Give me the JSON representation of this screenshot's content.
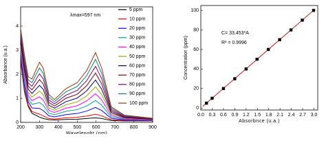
{
  "chart_data": [
    {
      "type": "line",
      "xlabel": "Wavelenght (nm)",
      "ylabel": "Absorbance (u.a.)",
      "annotation": "λmax=597 nm",
      "x": [
        200,
        220,
        240,
        260,
        300,
        320,
        350,
        380,
        440,
        500,
        550,
        597,
        630,
        680,
        750,
        900
      ],
      "xlim": [
        200,
        900
      ],
      "xticks": [
        200,
        300,
        400,
        500,
        600,
        700,
        800,
        900
      ],
      "ylim": [
        0,
        4.8
      ],
      "yticks": [
        0,
        1,
        2,
        3,
        4
      ],
      "legend": "upper right",
      "series": [
        {
          "name": "5 ppm",
          "color": "#000000",
          "values": [
            2.57,
            1.28,
            0.67,
            0.38,
            0.22,
            0.16,
            0.11,
            0.1,
            0.12,
            0.13,
            0.16,
            0.19,
            0.16,
            0.08,
            0.06,
            0.06
          ]
        },
        {
          "name": "10 ppm",
          "color": "#ff0000",
          "values": [
            2.64,
            1.36,
            0.73,
            0.45,
            0.34,
            0.27,
            0.16,
            0.14,
            0.19,
            0.21,
            0.26,
            0.34,
            0.27,
            0.11,
            0.08,
            0.06
          ]
        },
        {
          "name": "20 ppm",
          "color": "#0000ff",
          "values": [
            2.78,
            1.52,
            0.86,
            0.6,
            0.58,
            0.49,
            0.27,
            0.23,
            0.32,
            0.37,
            0.47,
            0.62,
            0.49,
            0.17,
            0.1,
            0.07
          ]
        },
        {
          "name": "30 ppm",
          "color": "#00a0a0",
          "values": [
            2.92,
            1.68,
            0.99,
            0.75,
            0.82,
            0.71,
            0.38,
            0.32,
            0.46,
            0.53,
            0.68,
            0.91,
            0.71,
            0.23,
            0.13,
            0.09
          ]
        },
        {
          "name": "40 ppm",
          "color": "#ff00ff",
          "values": [
            3.06,
            1.84,
            1.12,
            0.9,
            1.06,
            0.93,
            0.49,
            0.41,
            0.59,
            0.69,
            0.89,
            1.19,
            0.93,
            0.29,
            0.15,
            0.1
          ]
        },
        {
          "name": "50 ppm",
          "color": "#a0a000",
          "values": [
            3.2,
            2.0,
            1.25,
            1.05,
            1.3,
            1.15,
            0.6,
            0.5,
            0.73,
            0.85,
            1.1,
            1.48,
            1.15,
            0.35,
            0.18,
            0.11
          ]
        },
        {
          "name": "60 ppm",
          "color": "#000080",
          "values": [
            3.34,
            2.16,
            1.38,
            1.2,
            1.54,
            1.37,
            0.71,
            0.59,
            0.86,
            1.01,
            1.31,
            1.76,
            1.37,
            0.41,
            0.2,
            0.12
          ]
        },
        {
          "name": "70 ppm",
          "color": "#800000",
          "values": [
            3.48,
            2.32,
            1.51,
            1.35,
            1.78,
            1.59,
            0.82,
            0.68,
            1.0,
            1.17,
            1.52,
            2.05,
            1.59,
            0.47,
            0.23,
            0.13
          ]
        },
        {
          "name": "80 ppm",
          "color": "#800080",
          "values": [
            3.62,
            2.48,
            1.64,
            1.5,
            2.02,
            1.81,
            0.93,
            0.77,
            1.13,
            1.33,
            1.73,
            2.33,
            1.81,
            0.53,
            0.25,
            0.15
          ]
        },
        {
          "name": "90 ppm",
          "color": "#008080",
          "values": [
            3.76,
            2.64,
            1.77,
            1.65,
            2.26,
            2.03,
            1.04,
            0.86,
            1.27,
            1.49,
            1.94,
            2.62,
            2.03,
            0.59,
            0.28,
            0.16
          ]
        },
        {
          "name": "100 ppm",
          "color": "#993300",
          "values": [
            3.9,
            2.8,
            1.9,
            1.8,
            2.5,
            2.25,
            1.15,
            0.95,
            1.4,
            1.65,
            2.15,
            2.9,
            2.25,
            0.65,
            0.3,
            0.17
          ]
        }
      ]
    },
    {
      "type": "scatter",
      "xlabel": "Absorbnce (u.a.)",
      "ylabel": "Concentration (ppm)",
      "annotations": [
        "C= 33.453*A",
        "R² = 0.9996"
      ],
      "x": [
        0.15,
        0.3,
        0.6,
        0.9,
        1.2,
        1.49,
        1.79,
        2.09,
        2.39,
        2.69,
        2.99
      ],
      "values": [
        5,
        10,
        20,
        30,
        40,
        50,
        60,
        70,
        80,
        90,
        100
      ],
      "color": "#000000",
      "fit": {
        "color": "#cc0000",
        "x": [
          0.05,
          3.0
        ],
        "y": [
          1.7,
          100.36
        ]
      },
      "xlim": [
        0,
        3.1
      ],
      "xticks": [
        {
          "value": 0,
          "label": "0.0"
        },
        {
          "value": 0.3,
          "label": "0.3"
        },
        {
          "value": 0.6,
          "label": "0.6"
        },
        {
          "value": 0.9,
          "label": "0.9"
        },
        {
          "value": 1.2,
          "label": "1.2"
        },
        {
          "value": 1.5,
          "label": "1.5"
        },
        {
          "value": 1.8,
          "label": "1.8"
        },
        {
          "value": 2.1,
          "label": "2.1"
        },
        {
          "value": 2.4,
          "label": "2.4"
        },
        {
          "value": 2.7,
          "label": "2.7"
        },
        {
          "value": 3.0,
          "label": "3.0"
        }
      ],
      "ylim": [
        -2,
        105
      ],
      "yticks": [
        0,
        20,
        40,
        60,
        80,
        100
      ]
    }
  ]
}
